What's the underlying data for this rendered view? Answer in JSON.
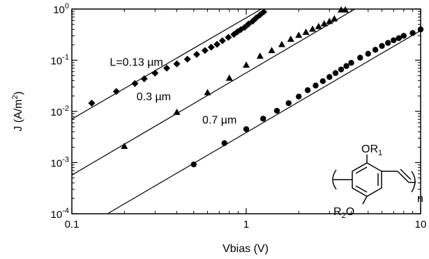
{
  "chart_data": {
    "type": "scatter",
    "xlabel": "Vbias (V)",
    "ylabel": "J (A/m",
    "ylabel_sup": "2",
    "ylabel_end": ")",
    "xscale": "log",
    "yscale": "log",
    "xlim": [
      0.1,
      10
    ],
    "ylim": [
      0.0001,
      1
    ],
    "grid": false,
    "x_ticks": [
      {
        "value": 0.1,
        "label": "0.1"
      },
      {
        "value": 1,
        "label": "1"
      },
      {
        "value": 10,
        "label": "10"
      }
    ],
    "y_ticks": [
      {
        "value": 0.0001,
        "base": "10",
        "exp": "-4"
      },
      {
        "value": 0.001,
        "base": "10",
        "exp": "-3"
      },
      {
        "value": 0.01,
        "base": "10",
        "exp": "-2"
      },
      {
        "value": 0.1,
        "base": "10",
        "exp": "-1"
      },
      {
        "value": 1,
        "base": "10",
        "exp": "0"
      }
    ],
    "series": [
      {
        "name": "L=0.13 µm",
        "marker": "diamond",
        "points": [
          [
            0.13,
            0.0145
          ],
          [
            0.18,
            0.0245
          ],
          [
            0.23,
            0.035
          ],
          [
            0.26,
            0.0435
          ],
          [
            0.3,
            0.056
          ],
          [
            0.35,
            0.07
          ],
          [
            0.4,
            0.085
          ],
          [
            0.46,
            0.105
          ],
          [
            0.52,
            0.13
          ],
          [
            0.58,
            0.155
          ],
          [
            0.63,
            0.18
          ],
          [
            0.68,
            0.205
          ],
          [
            0.73,
            0.24
          ],
          [
            0.79,
            0.28
          ],
          [
            0.85,
            0.32
          ],
          [
            0.89,
            0.36
          ],
          [
            0.93,
            0.395
          ],
          [
            0.98,
            0.44
          ],
          [
            1.03,
            0.51
          ],
          [
            1.09,
            0.58
          ],
          [
            1.14,
            0.67
          ],
          [
            1.2,
            0.77
          ],
          [
            1.26,
            0.88
          ]
        ],
        "fit": [
          [
            0.1,
            0.0071
          ],
          [
            1.22,
            1.0
          ]
        ]
      },
      {
        "name": "0.3 µm",
        "marker": "triangle",
        "points": [
          [
            0.2,
            0.0021
          ],
          [
            0.4,
            0.0097
          ],
          [
            0.6,
            0.0235
          ],
          [
            0.8,
            0.045
          ],
          [
            1.0,
            0.081
          ],
          [
            1.2,
            0.121
          ],
          [
            1.4,
            0.156
          ],
          [
            1.6,
            0.205
          ],
          [
            1.8,
            0.26
          ],
          [
            2.0,
            0.31
          ],
          [
            2.2,
            0.355
          ],
          [
            2.4,
            0.41
          ],
          [
            2.6,
            0.46
          ],
          [
            2.8,
            0.52
          ],
          [
            3.0,
            0.58
          ],
          [
            3.2,
            0.65
          ],
          [
            3.5,
            0.97
          ],
          [
            3.7,
            0.97
          ]
        ],
        "fit": [
          [
            0.1,
            0.00057
          ],
          [
            4.2,
            1.0
          ]
        ]
      },
      {
        "name": "0.7 µm",
        "marker": "circle",
        "points": [
          [
            0.5,
            0.00092
          ],
          [
            0.75,
            0.0024
          ],
          [
            1.0,
            0.0045
          ],
          [
            1.25,
            0.0072
          ],
          [
            1.5,
            0.0103
          ],
          [
            1.75,
            0.0145
          ],
          [
            2.0,
            0.0195
          ],
          [
            2.25,
            0.026
          ],
          [
            2.5,
            0.032
          ],
          [
            2.75,
            0.039
          ],
          [
            3.0,
            0.047
          ],
          [
            3.25,
            0.056
          ],
          [
            3.5,
            0.066
          ],
          [
            3.75,
            0.077
          ],
          [
            4.0,
            0.089
          ],
          [
            4.5,
            0.112
          ],
          [
            5.0,
            0.134
          ],
          [
            5.5,
            0.16
          ],
          [
            6.0,
            0.19
          ],
          [
            6.5,
            0.218
          ],
          [
            7.0,
            0.246
          ],
          [
            7.5,
            0.27
          ],
          [
            8.0,
            0.3
          ],
          [
            9.0,
            0.34
          ],
          [
            10.0,
            0.4
          ]
        ],
        "fit": [
          [
            0.16,
            0.0001
          ],
          [
            10,
            0.38
          ]
        ]
      }
    ],
    "annotations": [
      {
        "id": "label-013",
        "text": "L=0.13 µm",
        "x": 0.165,
        "y": 0.078
      },
      {
        "id": "label-03",
        "text": "0.3 µm",
        "x": 0.235,
        "y": 0.0165
      },
      {
        "id": "label-07",
        "text": "0.7 µm",
        "x": 0.56,
        "y": 0.0058
      }
    ],
    "structure": {
      "or1": "OR",
      "or1_sub": "1",
      "r2o_r": "R",
      "r2o_sub": "2",
      "r2o_o": "O",
      "n": "n"
    }
  }
}
